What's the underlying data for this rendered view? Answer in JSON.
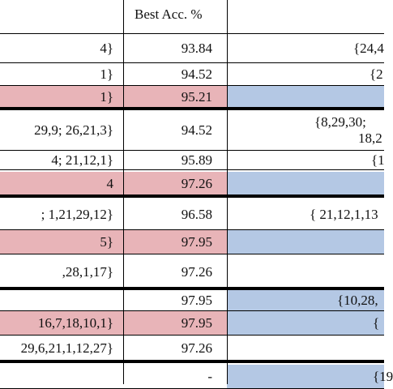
{
  "table": {
    "header": "Best Acc. %",
    "rows": [
      {
        "left": "4}",
        "value": "93.84",
        "right": [
          "{24,4"
        ]
      },
      {
        "left": "1}",
        "value": "94.52",
        "right": [
          "{2"
        ]
      },
      {
        "left": "1}",
        "value": "95.21"
      },
      {
        "left": "29,9; 26,21,3}",
        "value": "94.52",
        "right": [
          "{8,29,30;",
          "18,2"
        ]
      },
      {
        "left": "4; 21,12,1}",
        "value": "95.89",
        "right": [
          "{1"
        ]
      },
      {
        "left": "4",
        "value": "97.26"
      },
      {
        "left": "; 1,21,29,12}",
        "value": "96.58",
        "right": [
          "{ 21,12,1,13"
        ]
      },
      {
        "left": "5}",
        "value": "97.95"
      },
      {
        "left": ",28,1,17}",
        "value": "97.26"
      },
      {
        "value": "97.95",
        "right": [
          "{10,28,"
        ]
      },
      {
        "left": "16,7,18,10,1}",
        "value": "97.95",
        "right": [
          "{"
        ]
      },
      {
        "left": "29,6,21,1,12,27}",
        "value": "97.26"
      },
      {
        "value": "-",
        "right": [
          "{19"
        ]
      }
    ]
  }
}
